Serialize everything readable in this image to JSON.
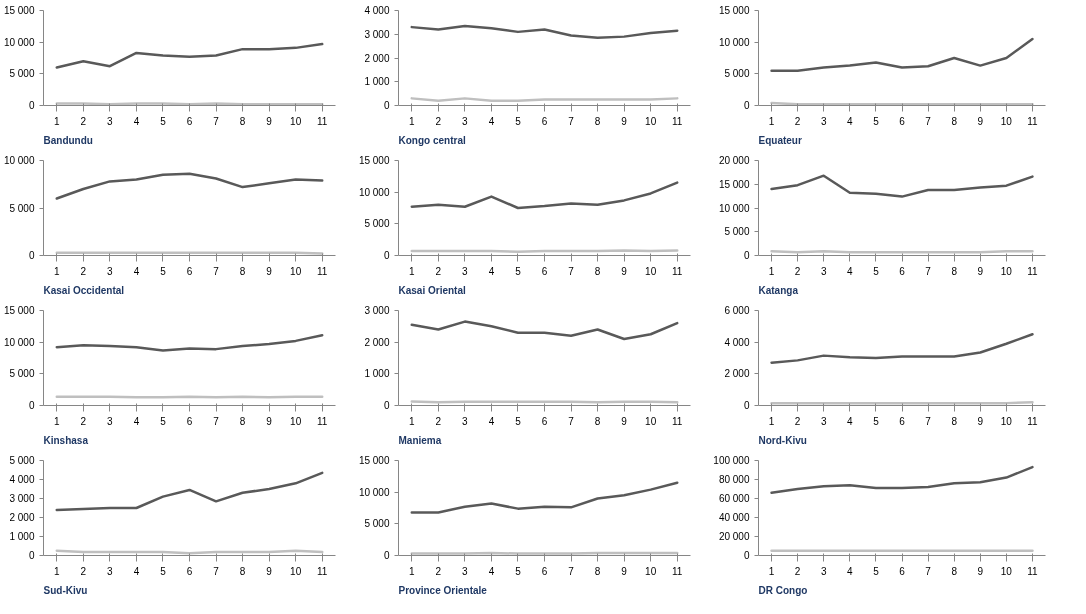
{
  "chart_data": [
    {
      "type": "line",
      "title": "Bandundu",
      "x": [
        1,
        2,
        3,
        4,
        5,
        6,
        7,
        8,
        9,
        10,
        11
      ],
      "xlim": [
        0.5,
        11.5
      ],
      "xticks": [
        1,
        2,
        3,
        4,
        5,
        6,
        7,
        8,
        9,
        10,
        11
      ],
      "ylim": [
        0,
        15000
      ],
      "yticks": [
        0,
        {
          "value": 5000,
          "label": "5 000"
        },
        {
          "value": 10000,
          "label": "10 000"
        },
        {
          "value": 15000,
          "label": "15 000"
        }
      ],
      "grid": false,
      "series": [
        {
          "color": "#595959",
          "values": [
            6000,
            7000,
            6200,
            8300,
            7900,
            7700,
            7900,
            8900,
            8900,
            9100,
            9700
          ]
        },
        {
          "color": "#bfbfbf",
          "values": [
            300,
            300,
            200,
            300,
            300,
            200,
            300,
            200,
            200,
            200,
            200
          ]
        }
      ]
    },
    {
      "type": "line",
      "title": "Kongo central",
      "x": [
        1,
        2,
        3,
        4,
        5,
        6,
        7,
        8,
        9,
        10,
        11
      ],
      "xlim": [
        0.5,
        11.5
      ],
      "xticks": [
        1,
        2,
        3,
        4,
        5,
        6,
        7,
        8,
        9,
        10,
        11
      ],
      "ylim": [
        0,
        4000
      ],
      "yticks": [
        0,
        {
          "value": 1000,
          "label": "1 000"
        },
        {
          "value": 2000,
          "label": "2 000"
        },
        {
          "value": 3000,
          "label": "3 000"
        },
        {
          "value": 4000,
          "label": "4 000"
        }
      ],
      "grid": false,
      "series": [
        {
          "color": "#595959",
          "values": [
            3300,
            3200,
            3350,
            3250,
            3100,
            3200,
            2950,
            2850,
            2900,
            3050,
            3150
          ]
        },
        {
          "color": "#bfbfbf",
          "values": [
            300,
            200,
            300,
            200,
            200,
            250,
            250,
            250,
            250,
            250,
            300
          ]
        }
      ]
    },
    {
      "type": "line",
      "title": "Equateur",
      "x": [
        1,
        2,
        3,
        4,
        5,
        6,
        7,
        8,
        9,
        10,
        11
      ],
      "xlim": [
        0.5,
        11.5
      ],
      "xticks": [
        1,
        2,
        3,
        4,
        5,
        6,
        7,
        8,
        9,
        10,
        11
      ],
      "ylim": [
        0,
        15000
      ],
      "yticks": [
        0,
        {
          "value": 5000,
          "label": "5 000"
        },
        {
          "value": 10000,
          "label": "10 000"
        },
        {
          "value": 15000,
          "label": "15 000"
        }
      ],
      "grid": false,
      "series": [
        {
          "color": "#595959",
          "values": [
            5500,
            5500,
            6000,
            6300,
            6800,
            6000,
            6200,
            7500,
            6300,
            7500,
            10500
          ]
        },
        {
          "color": "#bfbfbf",
          "values": [
            400,
            200,
            200,
            200,
            200,
            200,
            200,
            200,
            200,
            200,
            200
          ]
        }
      ]
    },
    {
      "type": "line",
      "title": "Kasai Occidental",
      "x": [
        1,
        2,
        3,
        4,
        5,
        6,
        7,
        8,
        9,
        10,
        11
      ],
      "xlim": [
        0.5,
        11.5
      ],
      "xticks": [
        1,
        2,
        3,
        4,
        5,
        6,
        7,
        8,
        9,
        10,
        11
      ],
      "ylim": [
        0,
        10000
      ],
      "yticks": [
        0,
        {
          "value": 5000,
          "label": "5 000"
        },
        {
          "value": 10000,
          "label": "10 000"
        }
      ],
      "grid": false,
      "series": [
        {
          "color": "#595959",
          "values": [
            6000,
            7000,
            7800,
            8000,
            8500,
            8600,
            8100,
            7200,
            7600,
            8000,
            7900
          ]
        },
        {
          "color": "#bfbfbf",
          "values": [
            300,
            300,
            300,
            300,
            300,
            300,
            300,
            300,
            300,
            300,
            200
          ]
        }
      ]
    },
    {
      "type": "line",
      "title": "Kasai Oriental",
      "x": [
        1,
        2,
        3,
        4,
        5,
        6,
        7,
        8,
        9,
        10,
        11
      ],
      "xlim": [
        0.5,
        11.5
      ],
      "xticks": [
        1,
        2,
        3,
        4,
        5,
        6,
        7,
        8,
        9,
        10,
        11
      ],
      "ylim": [
        0,
        15000
      ],
      "yticks": [
        0,
        {
          "value": 5000,
          "label": "5 000"
        },
        {
          "value": 10000,
          "label": "10 000"
        },
        {
          "value": 15000,
          "label": "15 000"
        }
      ],
      "grid": false,
      "series": [
        {
          "color": "#595959",
          "values": [
            7700,
            8000,
            7700,
            9300,
            7500,
            7800,
            8200,
            8000,
            8700,
            9800,
            11500
          ]
        },
        {
          "color": "#bfbfbf",
          "values": [
            700,
            700,
            700,
            700,
            600,
            700,
            700,
            700,
            800,
            700,
            800
          ]
        }
      ]
    },
    {
      "type": "line",
      "title": "Katanga",
      "x": [
        1,
        2,
        3,
        4,
        5,
        6,
        7,
        8,
        9,
        10,
        11
      ],
      "xlim": [
        0.5,
        11.5
      ],
      "xticks": [
        1,
        2,
        3,
        4,
        5,
        6,
        7,
        8,
        9,
        10,
        11
      ],
      "ylim": [
        0,
        20000
      ],
      "yticks": [
        0,
        {
          "value": 5000,
          "label": "5 000"
        },
        {
          "value": 10000,
          "label": "10 000"
        },
        {
          "value": 15000,
          "label": "15 000"
        },
        {
          "value": 20000,
          "label": "20 000"
        }
      ],
      "grid": false,
      "series": [
        {
          "color": "#595959",
          "values": [
            14000,
            14800,
            16800,
            13200,
            13000,
            12400,
            13800,
            13800,
            14300,
            14700,
            16600
          ]
        },
        {
          "color": "#bfbfbf",
          "values": [
            900,
            700,
            900,
            700,
            700,
            700,
            700,
            700,
            700,
            900,
            900
          ]
        }
      ]
    },
    {
      "type": "line",
      "title": "Kinshasa",
      "x": [
        1,
        2,
        3,
        4,
        5,
        6,
        7,
        8,
        9,
        10,
        11
      ],
      "xlim": [
        0.5,
        11.5
      ],
      "xticks": [
        1,
        2,
        3,
        4,
        5,
        6,
        7,
        8,
        9,
        10,
        11
      ],
      "ylim": [
        0,
        15000
      ],
      "yticks": [
        0,
        {
          "value": 5000,
          "label": "5 000"
        },
        {
          "value": 10000,
          "label": "10 000"
        },
        {
          "value": 15000,
          "label": "15 000"
        }
      ],
      "grid": false,
      "series": [
        {
          "color": "#595959",
          "values": [
            9200,
            9500,
            9400,
            9200,
            8700,
            9000,
            8900,
            9400,
            9700,
            10200,
            11100
          ]
        },
        {
          "color": "#bfbfbf",
          "values": [
            1400,
            1400,
            1400,
            1300,
            1300,
            1400,
            1300,
            1400,
            1300,
            1400,
            1400
          ]
        }
      ]
    },
    {
      "type": "line",
      "title": "Maniema",
      "x": [
        1,
        2,
        3,
        4,
        5,
        6,
        7,
        8,
        9,
        10,
        11
      ],
      "xlim": [
        0.5,
        11.5
      ],
      "xticks": [
        1,
        2,
        3,
        4,
        5,
        6,
        7,
        8,
        9,
        10,
        11
      ],
      "ylim": [
        0,
        3000
      ],
      "yticks": [
        0,
        {
          "value": 1000,
          "label": "1 000"
        },
        {
          "value": 2000,
          "label": "2 000"
        },
        {
          "value": 3000,
          "label": "3 000"
        }
      ],
      "grid": false,
      "series": [
        {
          "color": "#595959",
          "values": [
            2550,
            2400,
            2650,
            2500,
            2300,
            2300,
            2200,
            2400,
            2100,
            2250,
            2600
          ]
        },
        {
          "color": "#bfbfbf",
          "values": [
            130,
            100,
            120,
            120,
            120,
            120,
            120,
            100,
            120,
            120,
            100
          ]
        }
      ]
    },
    {
      "type": "line",
      "title": "Nord-Kivu",
      "x": [
        1,
        2,
        3,
        4,
        5,
        6,
        7,
        8,
        9,
        10,
        11
      ],
      "xlim": [
        0.5,
        11.5
      ],
      "xticks": [
        1,
        2,
        3,
        4,
        5,
        6,
        7,
        8,
        9,
        10,
        11
      ],
      "ylim": [
        0,
        6000
      ],
      "yticks": [
        0,
        {
          "value": 2000,
          "label": "2 000"
        },
        {
          "value": 4000,
          "label": "4 000"
        },
        {
          "value": 6000,
          "label": "6 000"
        }
      ],
      "grid": false,
      "series": [
        {
          "color": "#595959",
          "values": [
            2700,
            2850,
            3150,
            3050,
            3000,
            3100,
            3100,
            3100,
            3350,
            3900,
            4500
          ]
        },
        {
          "color": "#bfbfbf",
          "values": [
            150,
            150,
            150,
            150,
            150,
            150,
            150,
            150,
            150,
            150,
            200
          ]
        }
      ]
    },
    {
      "type": "line",
      "title": "Sud-Kivu",
      "x": [
        1,
        2,
        3,
        4,
        5,
        6,
        7,
        8,
        9,
        10,
        11
      ],
      "xlim": [
        0.5,
        11.5
      ],
      "xticks": [
        1,
        2,
        3,
        4,
        5,
        6,
        7,
        8,
        9,
        10,
        11
      ],
      "ylim": [
        0,
        5000
      ],
      "yticks": [
        0,
        {
          "value": 1000,
          "label": "1 000"
        },
        {
          "value": 2000,
          "label": "2 000"
        },
        {
          "value": 3000,
          "label": "3 000"
        },
        {
          "value": 4000,
          "label": "4 000"
        },
        {
          "value": 5000,
          "label": "5 000"
        }
      ],
      "grid": false,
      "series": [
        {
          "color": "#595959",
          "values": [
            2400,
            2450,
            2500,
            2500,
            3100,
            3450,
            2850,
            3300,
            3500,
            3800,
            4350
          ]
        },
        {
          "color": "#bfbfbf",
          "values": [
            250,
            180,
            180,
            180,
            180,
            120,
            180,
            180,
            180,
            250,
            180
          ]
        }
      ]
    },
    {
      "type": "line",
      "title": "Province Orientale",
      "x": [
        1,
        2,
        3,
        4,
        5,
        6,
        7,
        8,
        9,
        10,
        11
      ],
      "xlim": [
        0.5,
        11.5
      ],
      "xticks": [
        1,
        2,
        3,
        4,
        5,
        6,
        7,
        8,
        9,
        10,
        11
      ],
      "ylim": [
        0,
        15000
      ],
      "yticks": [
        0,
        {
          "value": 5000,
          "label": "5 000"
        },
        {
          "value": 10000,
          "label": "10 000"
        },
        {
          "value": 15000,
          "label": "15 000"
        }
      ],
      "grid": false,
      "series": [
        {
          "color": "#595959",
          "values": [
            6800,
            6800,
            7700,
            8200,
            7400,
            7700,
            7600,
            9000,
            9500,
            10400,
            11500
          ]
        },
        {
          "color": "#bfbfbf",
          "values": [
            300,
            300,
            300,
            400,
            300,
            300,
            300,
            400,
            400,
            400,
            400
          ]
        }
      ]
    },
    {
      "type": "line",
      "title": "DR Congo",
      "x": [
        1,
        2,
        3,
        4,
        5,
        6,
        7,
        8,
        9,
        10,
        11
      ],
      "xlim": [
        0.5,
        11.5
      ],
      "xticks": [
        1,
        2,
        3,
        4,
        5,
        6,
        7,
        8,
        9,
        10,
        11
      ],
      "ylim": [
        0,
        100000
      ],
      "yticks": [
        0,
        {
          "value": 20000,
          "label": "20 000"
        },
        {
          "value": 40000,
          "label": "40 000"
        },
        {
          "value": 60000,
          "label": "60 000"
        },
        {
          "value": 80000,
          "label": "80 000"
        },
        {
          "value": 100000,
          "label": "100 000"
        }
      ],
      "grid": false,
      "series": [
        {
          "color": "#595959",
          "values": [
            66000,
            70000,
            73000,
            74000,
            71000,
            71000,
            72000,
            76000,
            77000,
            82000,
            93000
          ]
        },
        {
          "color": "#bfbfbf",
          "values": [
            5000,
            5000,
            5000,
            5000,
            5000,
            5000,
            5000,
            5000,
            5000,
            5000,
            5000
          ]
        }
      ]
    }
  ]
}
